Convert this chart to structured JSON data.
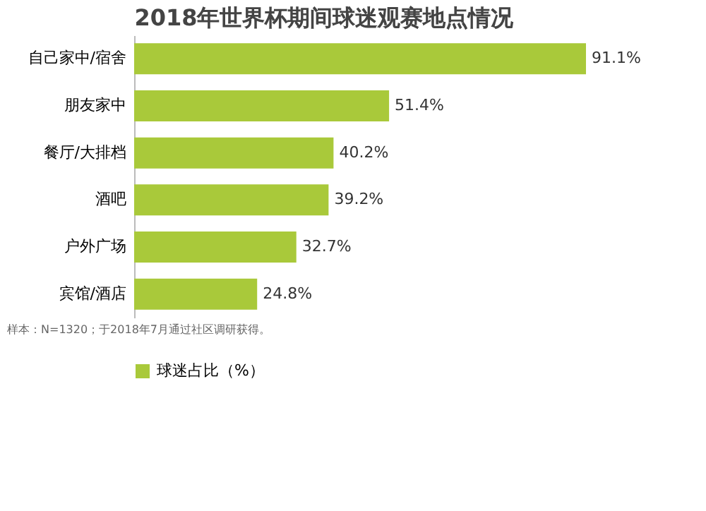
{
  "chart_data": {
    "type": "bar",
    "orientation": "horizontal",
    "title": "2018年世界杯期间球迷观赛地点情况",
    "categories": [
      "自己家中/宿舍",
      "朋友家中",
      "餐厅/大排档",
      "酒吧",
      "户外广场",
      "宾馆/酒店"
    ],
    "series": [
      {
        "name": "球迷占比（%）",
        "color": "#a9c93a",
        "values": [
          91.1,
          51.4,
          40.2,
          39.2,
          32.7,
          24.8
        ],
        "value_labels": [
          "91.1%",
          "51.4%",
          "40.2%",
          "39.2%",
          "32.7%",
          "24.8%"
        ]
      }
    ],
    "legend": "bottom",
    "grid": false,
    "annotations": [
      "样本：N=1320；于2018年7月通过社区调研获得。"
    ]
  }
}
